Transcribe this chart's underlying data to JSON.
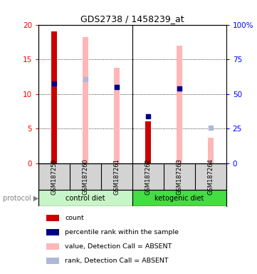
{
  "title": "GDS2738 / 1458239_at",
  "samples": [
    "GSM187259",
    "GSM187260",
    "GSM187261",
    "GSM187262",
    "GSM187263",
    "GSM187264"
  ],
  "count_values": [
    19.0,
    null,
    null,
    6.0,
    null,
    null
  ],
  "rank_values": [
    11.5,
    null,
    11.0,
    6.8,
    10.8,
    null
  ],
  "value_absent": [
    null,
    18.2,
    13.8,
    null,
    17.0,
    3.7
  ],
  "rank_absent": [
    null,
    12.1,
    11.1,
    null,
    10.8,
    5.1
  ],
  "left_ylim": [
    0,
    20
  ],
  "left_yticks": [
    0,
    5,
    10,
    15,
    20
  ],
  "right_ylim": [
    0,
    100
  ],
  "right_yticks": [
    0,
    25,
    50,
    75,
    100
  ],
  "right_yticklabels": [
    "0",
    "25",
    "50",
    "75",
    "100%"
  ],
  "count_color": "#cc0000",
  "rank_color": "#00008b",
  "value_absent_color": "#ffb6b6",
  "rank_absent_color": "#b0b8d8",
  "bg_sample": "#d3d3d3",
  "ctrl_color": "#c8f5c8",
  "keto_color": "#44dd44",
  "control_label": "control diet",
  "keto_label": "ketogenic diet",
  "protocol_label": "protocol",
  "legend_items": [
    [
      "#cc0000",
      "count"
    ],
    [
      "#00008b",
      "percentile rank within the sample"
    ],
    [
      "#ffb6b6",
      "value, Detection Call = ABSENT"
    ],
    [
      "#b0b8d8",
      "rank, Detection Call = ABSENT"
    ]
  ],
  "bar_width": 0.18,
  "absent_bar_width": 0.18,
  "rank_marker_size": 4
}
